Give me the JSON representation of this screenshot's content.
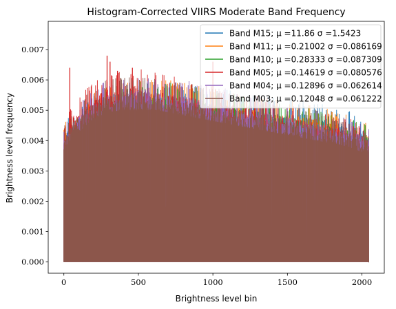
{
  "chart_data": {
    "type": "histogram",
    "title": "Histogram-Corrected VIIRS Moderate Band Frequency",
    "xlabel": "Brightness level bin",
    "ylabel": "Brightness level frequency",
    "xlim": [
      -105,
      2150
    ],
    "ylim": [
      -0.00037,
      0.00793
    ],
    "xticks": [
      0,
      500,
      1000,
      1500,
      2000
    ],
    "xtick_labels": [
      "0",
      "500",
      "1000",
      "1500",
      "2000"
    ],
    "yticks": [
      0.0,
      0.001,
      0.002,
      0.003,
      0.004,
      0.005,
      0.006,
      0.007
    ],
    "ytick_labels": [
      "0.000",
      "0.001",
      "0.002",
      "0.003",
      "0.004",
      "0.005",
      "0.006",
      "0.007"
    ],
    "grid": false,
    "legend_position": "top-right",
    "bins": 2048,
    "series": [
      {
        "name": "Band M15; μ =11.86 σ =1.5423",
        "color": "#1f77b4",
        "x_range": [
          0,
          2047
        ],
        "profile_x": [
          0,
          50,
          100,
          200,
          300,
          400,
          500,
          600,
          700,
          800,
          900,
          1000,
          1100,
          1200,
          1300,
          1400,
          1500,
          1600,
          1700,
          1800,
          1900,
          2000,
          2047
        ],
        "profile_y": [
          0.0041,
          0.0043,
          0.0045,
          0.0048,
          0.005,
          0.0051,
          0.0052,
          0.0052,
          0.0052,
          0.0051,
          0.0051,
          0.005,
          0.005,
          0.0049,
          0.0048,
          0.0048,
          0.0047,
          0.0047,
          0.0046,
          0.0045,
          0.0044,
          0.0042,
          0.0041
        ]
      },
      {
        "name": "Band M11; μ =0.21002 σ =0.086169",
        "color": "#ff7f0e",
        "x_range": [
          0,
          2047
        ],
        "profile_x": [
          0,
          50,
          100,
          200,
          300,
          400,
          500,
          600,
          700,
          800,
          900,
          1000,
          1100,
          1200,
          1300,
          1400,
          1500,
          1600,
          1700,
          1800,
          1900,
          2000,
          2047
        ],
        "profile_y": [
          0.004,
          0.0043,
          0.0045,
          0.0049,
          0.0051,
          0.0052,
          0.0053,
          0.0053,
          0.0053,
          0.0052,
          0.0051,
          0.005,
          0.0049,
          0.0049,
          0.0048,
          0.0047,
          0.0047,
          0.0046,
          0.0045,
          0.0044,
          0.0043,
          0.0041,
          0.004
        ]
      },
      {
        "name": "Band M10; μ =0.28333 σ =0.087309",
        "color": "#2ca02c",
        "x_range": [
          0,
          2047
        ],
        "profile_x": [
          0,
          50,
          100,
          200,
          300,
          400,
          500,
          600,
          700,
          800,
          900,
          1000,
          1100,
          1200,
          1300,
          1400,
          1500,
          1600,
          1700,
          1800,
          1900,
          2000,
          2047
        ],
        "profile_y": [
          0.004,
          0.0042,
          0.0044,
          0.0048,
          0.005,
          0.0052,
          0.0052,
          0.0053,
          0.0052,
          0.0051,
          0.0051,
          0.005,
          0.0049,
          0.0048,
          0.0048,
          0.0047,
          0.0046,
          0.0045,
          0.0044,
          0.0043,
          0.0042,
          0.0041,
          0.004
        ]
      },
      {
        "name": "Band M05; μ =0.14619 σ =0.080576",
        "color": "#d62728",
        "x_range": [
          0,
          2047
        ],
        "profile_x": [
          0,
          50,
          100,
          200,
          300,
          400,
          500,
          600,
          700,
          800,
          900,
          1000,
          1100,
          1200,
          1300,
          1400,
          1500,
          1600,
          1700,
          1800,
          1900,
          2000,
          2047
        ],
        "profile_y": [
          0.0039,
          0.0046,
          0.0048,
          0.0052,
          0.0055,
          0.0056,
          0.0056,
          0.0055,
          0.0054,
          0.0053,
          0.0052,
          0.0051,
          0.005,
          0.0049,
          0.0048,
          0.0047,
          0.0046,
          0.0045,
          0.0044,
          0.0043,
          0.0042,
          0.004,
          0.0039
        ],
        "peaks": [
          {
            "x": 40,
            "y": 0.0064
          },
          {
            "x": 290,
            "y": 0.0068
          },
          {
            "x": 310,
            "y": 0.0066
          },
          {
            "x": 360,
            "y": 0.0063
          },
          {
            "x": 460,
            "y": 0.0064
          },
          {
            "x": 1000,
            "y": 0.0066
          }
        ]
      },
      {
        "name": "Band M04; μ =0.12896 σ =0.062614",
        "color": "#9467bd",
        "x_range": [
          0,
          2047
        ],
        "profile_x": [
          0,
          50,
          100,
          200,
          300,
          400,
          500,
          600,
          700,
          800,
          900,
          1000,
          1100,
          1200,
          1300,
          1400,
          1500,
          1600,
          1700,
          1800,
          1900,
          2000,
          2047
        ],
        "profile_y": [
          0.0039,
          0.0044,
          0.0046,
          0.005,
          0.0053,
          0.0054,
          0.0055,
          0.0054,
          0.0054,
          0.0053,
          0.0052,
          0.0051,
          0.005,
          0.0049,
          0.0048,
          0.0047,
          0.0046,
          0.0045,
          0.0044,
          0.0043,
          0.0042,
          0.004,
          0.0039
        ]
      },
      {
        "name": "Band M03; μ =0.12048 σ =0.061222",
        "color": "#8c564b",
        "x_range": [
          0,
          2047
        ],
        "profile_x": [
          0,
          50,
          100,
          200,
          300,
          400,
          500,
          600,
          700,
          800,
          900,
          1000,
          1100,
          1200,
          1300,
          1400,
          1500,
          1600,
          1700,
          1800,
          1900,
          2000,
          2047
        ],
        "profile_y": [
          0.0039,
          0.0044,
          0.0046,
          0.0051,
          0.0053,
          0.0054,
          0.0054,
          0.0054,
          0.0053,
          0.0052,
          0.0051,
          0.005,
          0.0049,
          0.0048,
          0.0047,
          0.0046,
          0.0045,
          0.0044,
          0.0043,
          0.0042,
          0.0041,
          0.0039,
          0.0039
        ]
      }
    ]
  }
}
